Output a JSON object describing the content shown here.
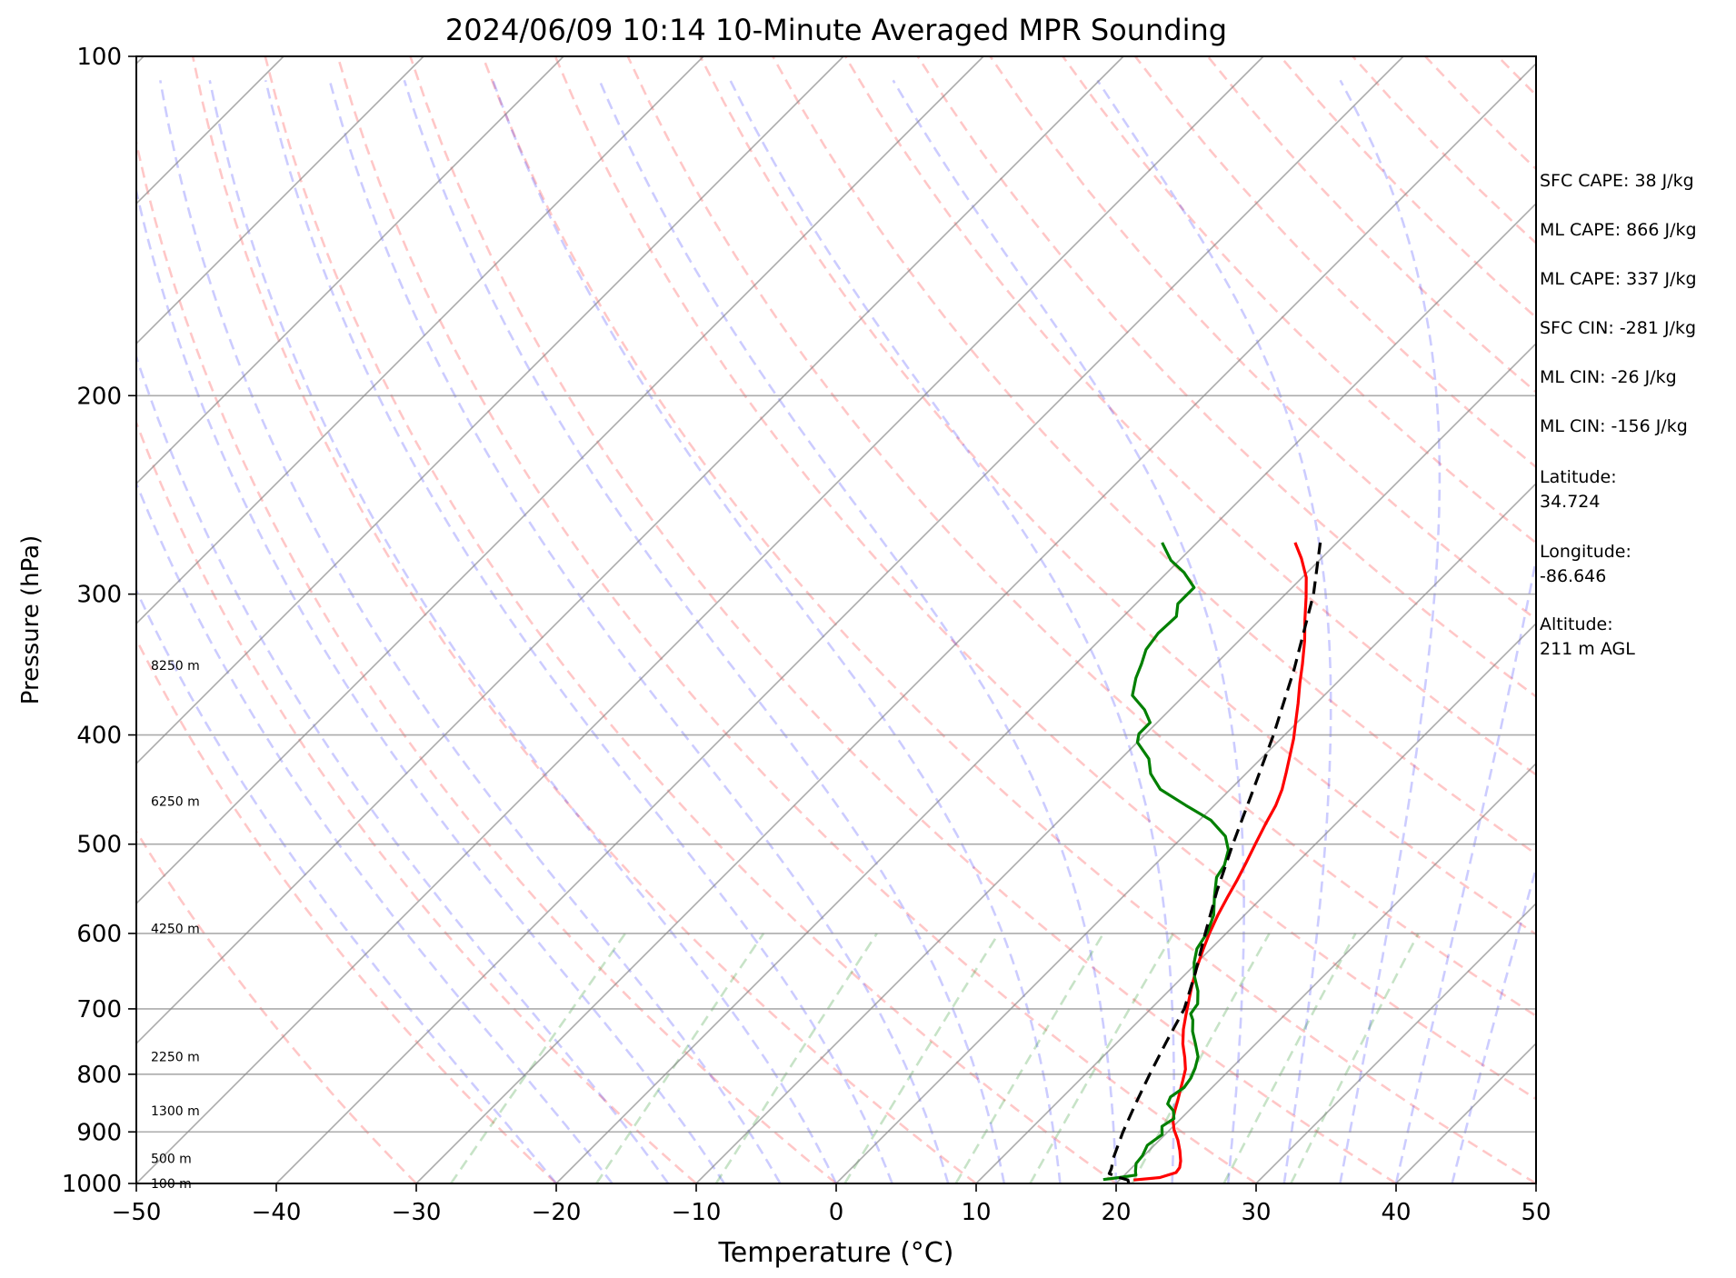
{
  "title": "2024/06/09 10:14 10-Minute Averaged MPR Sounding",
  "chart_data": {
    "type": "skew-t",
    "title": "2024/06/09 10:14 10-Minute Averaged MPR Sounding",
    "xlabel": "Temperature (°C)",
    "ylabel": "Pressure (hPa)",
    "xlim": [
      -50,
      50
    ],
    "ylim": [
      1000,
      100
    ],
    "y_scale": "log",
    "x_ticks": [
      -50,
      -40,
      -30,
      -20,
      -10,
      0,
      10,
      20,
      30,
      40,
      50
    ],
    "x_tick_labels": [
      "−50",
      "−40",
      "−30",
      "−20",
      "−10",
      "0",
      "10",
      "20",
      "30",
      "40",
      "50"
    ],
    "y_ticks": [
      1000,
      900,
      800,
      700,
      600,
      500,
      400,
      300,
      200,
      100
    ],
    "y_tick_labels": [
      "1000",
      "900",
      "800",
      "700",
      "600",
      "500",
      "400",
      "300",
      "200",
      "100"
    ],
    "grid": true,
    "height_labels": [
      {
        "p": 1000,
        "text": "100 m"
      },
      {
        "p": 950,
        "text": "500 m"
      },
      {
        "p": 862,
        "text": "1300 m"
      },
      {
        "p": 772,
        "text": "2250 m"
      },
      {
        "p": 594,
        "text": "4250 m"
      },
      {
        "p": 458,
        "text": "6250 m"
      },
      {
        "p": 347,
        "text": "8250 m"
      }
    ],
    "series": [
      {
        "kind": "temperature",
        "color": "#ff0000",
        "points": [
          [
            993,
            21.0
          ],
          [
            988,
            22.7
          ],
          [
            978,
            23.5
          ],
          [
            968,
            23.4
          ],
          [
            955,
            23.0
          ],
          [
            935,
            22.2
          ],
          [
            915,
            21.3
          ],
          [
            896,
            20.3
          ],
          [
            878,
            19.5
          ],
          [
            862,
            19.0
          ],
          [
            845,
            18.5
          ],
          [
            829,
            18.0
          ],
          [
            810,
            17.4
          ],
          [
            792,
            16.8
          ],
          [
            773,
            15.9
          ],
          [
            752,
            14.8
          ],
          [
            730,
            13.8
          ],
          [
            710,
            13.0
          ],
          [
            690,
            12.2
          ],
          [
            668,
            11.3
          ],
          [
            645,
            10.4
          ],
          [
            620,
            9.5
          ],
          [
            600,
            8.8
          ],
          [
            578,
            8.1
          ],
          [
            557,
            7.5
          ],
          [
            539,
            7.0
          ],
          [
            520,
            6.4
          ],
          [
            500,
            5.7
          ],
          [
            480,
            5.0
          ],
          [
            462,
            4.4
          ],
          [
            447,
            3.7
          ],
          [
            432,
            2.8
          ],
          [
            418,
            1.9
          ],
          [
            403,
            0.9
          ],
          [
            390,
            -0.1
          ],
          [
            375,
            -1.3
          ],
          [
            360,
            -2.6
          ],
          [
            346,
            -3.8
          ],
          [
            330,
            -5.3
          ],
          [
            316,
            -6.8
          ],
          [
            302,
            -8.3
          ],
          [
            290,
            -9.7
          ],
          [
            279,
            -11.4
          ],
          [
            270,
            -13.0
          ]
        ]
      },
      {
        "kind": "dewpoint",
        "color": "#008000",
        "points": [
          [
            992,
            18.8
          ],
          [
            988,
            19.8
          ],
          [
            983,
            20.8
          ],
          [
            975,
            20.5
          ],
          [
            960,
            20.0
          ],
          [
            945,
            19.9
          ],
          [
            925,
            19.5
          ],
          [
            905,
            19.8
          ],
          [
            890,
            19.2
          ],
          [
            876,
            19.5
          ],
          [
            862,
            18.9
          ],
          [
            850,
            18.0
          ],
          [
            838,
            17.7
          ],
          [
            822,
            18.0
          ],
          [
            806,
            17.8
          ],
          [
            790,
            17.4
          ],
          [
            772,
            16.8
          ],
          [
            752,
            15.7
          ],
          [
            733,
            14.6
          ],
          [
            716,
            13.8
          ],
          [
            707,
            13.2
          ],
          [
            693,
            13.0
          ],
          [
            675,
            12.1
          ],
          [
            655,
            10.8
          ],
          [
            637,
            9.8
          ],
          [
            619,
            9.0
          ],
          [
            599,
            8.6
          ],
          [
            578,
            7.8
          ],
          [
            556,
            6.5
          ],
          [
            535,
            5.3
          ],
          [
            522,
            5.0
          ],
          [
            506,
            4.2
          ],
          [
            492,
            3.0
          ],
          [
            476,
            0.8
          ],
          [
            462,
            -2.0
          ],
          [
            447,
            -5.0
          ],
          [
            433,
            -6.8
          ],
          [
            420,
            -8.0
          ],
          [
            406,
            -10.0
          ],
          [
            399,
            -10.5
          ],
          [
            390,
            -10.5
          ],
          [
            380,
            -11.8
          ],
          [
            369,
            -13.7
          ],
          [
            356,
            -14.7
          ],
          [
            346,
            -15.3
          ],
          [
            336,
            -16.0
          ],
          [
            325,
            -16.3
          ],
          [
            314,
            -16.2
          ],
          [
            306,
            -17.0
          ],
          [
            296,
            -17.0
          ],
          [
            287,
            -18.8
          ],
          [
            280,
            -20.6
          ],
          [
            270,
            -22.5
          ]
        ]
      },
      {
        "kind": "parcel",
        "color": "#000000",
        "points": [
          [
            1000,
            20.9
          ],
          [
            993,
            20.6
          ],
          [
            988,
            19.8
          ],
          [
            980,
            18.8
          ],
          [
            970,
            18.6
          ],
          [
            950,
            18.0
          ],
          [
            900,
            16.8
          ],
          [
            850,
            15.7
          ],
          [
            800,
            14.6
          ],
          [
            750,
            13.5
          ],
          [
            700,
            12.4
          ],
          [
            650,
            10.6
          ],
          [
            600,
            8.5
          ],
          [
            550,
            6.3
          ],
          [
            500,
            4.1
          ],
          [
            450,
            1.8
          ],
          [
            400,
            -0.8
          ],
          [
            350,
            -4.0
          ],
          [
            300,
            -8.0
          ],
          [
            270,
            -11.2
          ]
        ]
      }
    ],
    "parameters": [
      "SFC CAPE: 38 J/kg",
      "ML CAPE: 866 J/kg",
      "ML CAPE: 337 J/kg",
      "SFC CIN: -281 J/kg",
      "ML CIN: -26 J/kg",
      "ML CIN: -156 J/kg",
      "Latitude:\n34.724",
      "Longitude:\n-86.646",
      "Altitude:\n211 m AGL"
    ]
  }
}
